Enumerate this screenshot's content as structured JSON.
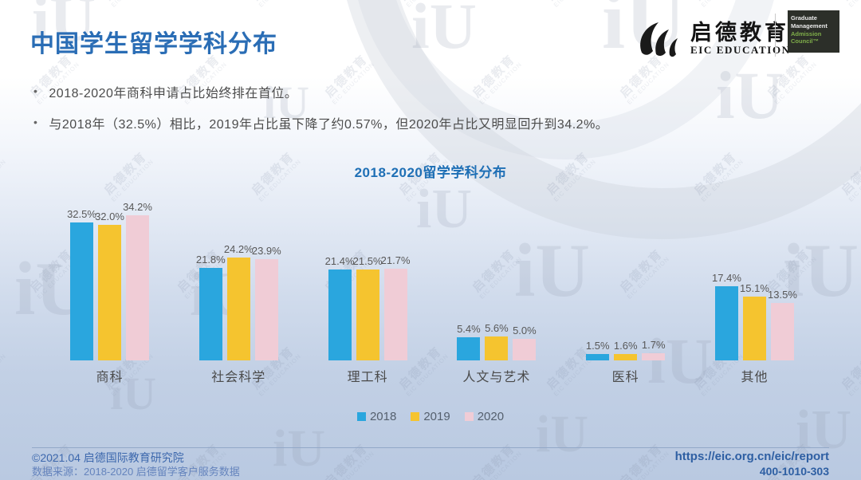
{
  "header": {
    "title": "中国学生留学学科分布",
    "brand": {
      "icon": "eic-logo-icon",
      "name_cn": "启德教育",
      "name_en": "EIC EDUCATION"
    },
    "gmac": [
      "Graduate",
      "Management",
      "Admission",
      "Council™"
    ]
  },
  "bullets": [
    "2018-2020年商科申请占比始终排在首位。",
    "与2018年（32.5%）相比，2019年占比虽下降了约0.57%，但2020年占比又明显回升到34.2%。"
  ],
  "chart_data": {
    "type": "bar",
    "title": "2018-2020留学学科分布",
    "categories": [
      "商科",
      "社会科学",
      "理工科",
      "人文与艺术",
      "医科",
      "其他"
    ],
    "series": [
      {
        "name": "2018",
        "color": "#2AA6DE",
        "values": [
          32.5,
          21.8,
          21.4,
          5.4,
          1.5,
          17.4
        ]
      },
      {
        "name": "2019",
        "color": "#F5C42F",
        "values": [
          32.0,
          24.2,
          21.5,
          5.6,
          1.6,
          15.1
        ]
      },
      {
        "name": "2020",
        "color": "#F0CCD6",
        "values": [
          34.2,
          23.9,
          21.7,
          5.0,
          1.7,
          13.5
        ]
      }
    ],
    "value_suffix": "%",
    "xlabel": "",
    "ylabel": "",
    "ylim": [
      0,
      35
    ],
    "grid": false,
    "legend_position": "bottom",
    "data_labels": true
  },
  "footer": {
    "left_line1": "©2021.04 启德国际教育研究院",
    "left_line2": "数据来源：2018-2020 启德留学客户服务数据",
    "right_url": "https://eic.org.cn/eic/report",
    "right_phone": "400-1010-303"
  },
  "watermark": {
    "line1": "启德教育",
    "line2": "EIC EDUCATION",
    "logo": "iU"
  },
  "colors": {
    "title_blue": "#2A6DB5",
    "chart_title_blue": "#1E6FB5",
    "footer_blue": "#3D68AD",
    "gmac_green": "#7FAE4A",
    "bar_2018": "#2AA6DE",
    "bar_2019": "#F5C42F",
    "bar_2020": "#F0CCD6"
  }
}
